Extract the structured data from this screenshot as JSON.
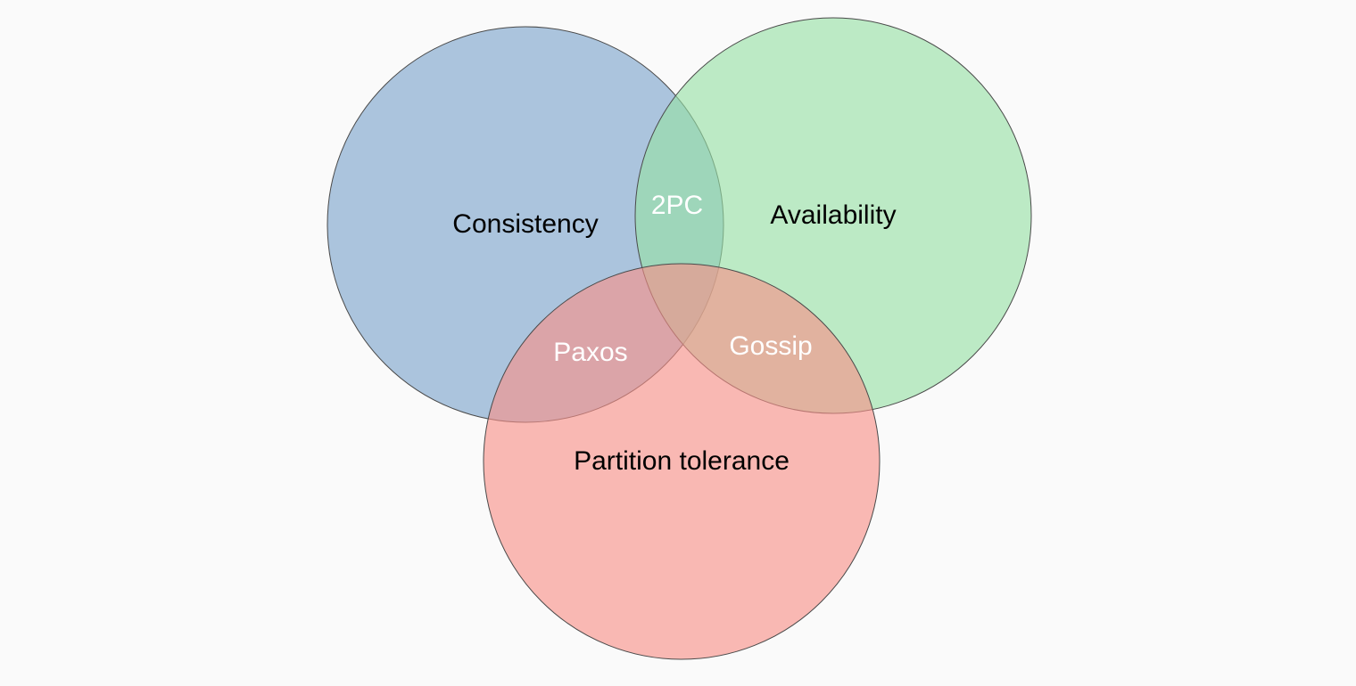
{
  "diagram": {
    "type": "venn",
    "sets": [
      {
        "id": "consistency",
        "label": "Consistency",
        "color": "#7ba3cc"
      },
      {
        "id": "availability",
        "label": "Availability",
        "color": "#96e0a4"
      },
      {
        "id": "partition",
        "label": "Partition tolerance",
        "color": "#f88f88"
      }
    ],
    "overlaps": [
      {
        "sets": [
          "consistency",
          "availability"
        ],
        "label": "2PC"
      },
      {
        "sets": [
          "consistency",
          "partition"
        ],
        "label": "Paxos"
      },
      {
        "sets": [
          "availability",
          "partition"
        ],
        "label": "Gossip"
      }
    ],
    "stroke_color": "#4a4a4a",
    "background": "#fafafa"
  }
}
